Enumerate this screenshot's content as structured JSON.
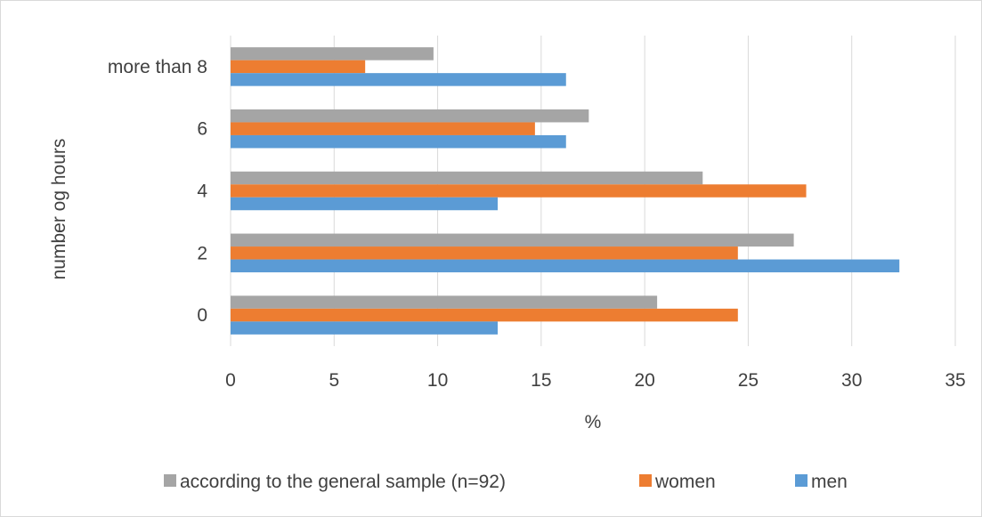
{
  "chart_data": {
    "type": "bar",
    "orientation": "horizontal",
    "categories": [
      "0",
      "2",
      "4",
      "6",
      "more than 8"
    ],
    "series": [
      {
        "name": "men",
        "color": "#5b9bd5",
        "values": [
          12.9,
          32.3,
          12.9,
          16.2,
          16.2
        ]
      },
      {
        "name": "women",
        "color": "#ed7d31",
        "values": [
          24.5,
          24.5,
          27.8,
          14.7,
          6.5
        ]
      },
      {
        "name": "according to the general sample (n=92)",
        "color": "#a5a5a5",
        "values": [
          20.6,
          27.2,
          22.8,
          17.3,
          9.8
        ]
      }
    ],
    "xlabel": "%",
    "ylabel": "number og hours",
    "xlim": [
      0,
      35
    ],
    "xticks": [
      0,
      5,
      10,
      15,
      20,
      25,
      30,
      35
    ],
    "grid": "vertical",
    "legend_position": "bottom",
    "legend_order": [
      "according to the general sample (n=92)",
      "women",
      "men"
    ]
  }
}
